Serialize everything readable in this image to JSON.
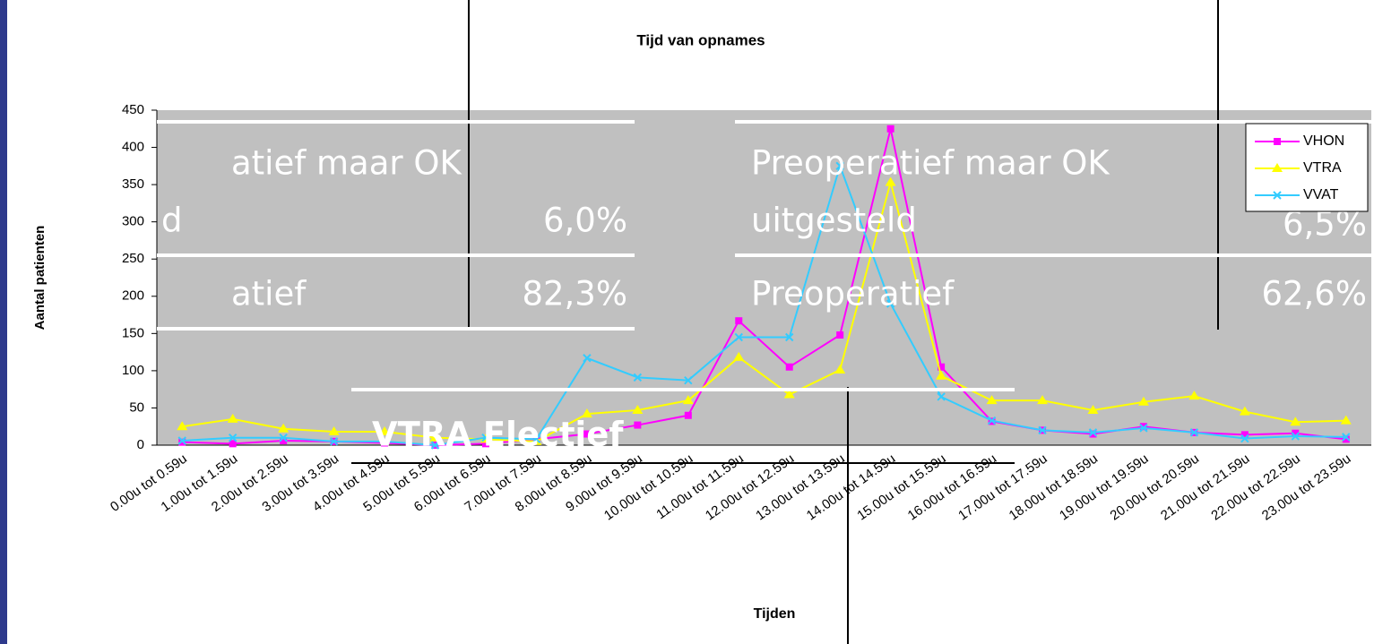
{
  "chart_data": {
    "type": "line",
    "title": "Tijd van opnames",
    "x_label": "Tijden",
    "y_label": "Aantal patienten",
    "categories": [
      "0.00u tot 0.59u",
      "1.00u tot 1.59u",
      "2.00u tot 2.59u",
      "3.00u tot 3.59u",
      "4.00u tot 4.59u",
      "5.00u tot 5.59u",
      "6.00u tot 6.59u",
      "7.00u tot 7.59u",
      "8.00u tot 8.59u",
      "9.00u tot 9.59u",
      "10.00u tot 10.59u",
      "11.00u tot 11.59u",
      "12.00u tot 12.59u",
      "13.00u tot 13.59u",
      "14.00u tot 14.59u",
      "15.00u tot 15.59u",
      "16.00u tot 16.59u",
      "17.00u tot 17.59u",
      "18.00u tot 18.59u",
      "19.00u tot 19.59u",
      "20.00u tot 20.59u",
      "21.00u tot 21.59u",
      "22.00u tot 22.59u",
      "23.00u tot 23.59u"
    ],
    "series": [
      {
        "name": "VHON",
        "color": "#ff00ff",
        "marker": "square",
        "values": [
          4,
          2,
          6,
          5,
          3,
          0,
          2,
          8,
          15,
          27,
          40,
          167,
          105,
          148,
          425,
          105,
          32,
          20,
          15,
          25,
          17,
          14,
          16,
          8
        ]
      },
      {
        "name": "VTRA",
        "color": "#ffff00",
        "marker": "triangle",
        "values": [
          25,
          35,
          22,
          18,
          18,
          10,
          8,
          5,
          42,
          47,
          60,
          118,
          68,
          101,
          353,
          93,
          60,
          60,
          47,
          58,
          66,
          45,
          31,
          33
        ]
      },
      {
        "name": "VVAT",
        "color": "#33ccff",
        "marker": "x",
        "values": [
          6,
          10,
          10,
          5,
          5,
          0,
          10,
          8,
          117,
          91,
          87,
          145,
          145,
          375,
          190,
          65,
          33,
          20,
          17,
          23,
          17,
          9,
          12,
          11
        ]
      }
    ],
    "ylim": [
      0,
      450
    ],
    "yticks": [
      0,
      50,
      100,
      150,
      200,
      250,
      300,
      350,
      400,
      450
    ],
    "grid": false,
    "legend": "top-right",
    "plot_color": "#c0c0c0"
  },
  "slide_text": {
    "row1_left": "atief maar OK",
    "row1_right": "Preoperatief maar OK",
    "row2_left_label": "d",
    "row2_left_value": "6,0%",
    "row2_right_label": "uitgesteld",
    "row2_right_value": "6,5%",
    "row3_left_label": "atief",
    "row3_left_value": "82,3%",
    "row3_right_label": "Preoperatief",
    "row3_right_value": "62,6%",
    "bottom_label": "VTRA Electief"
  }
}
